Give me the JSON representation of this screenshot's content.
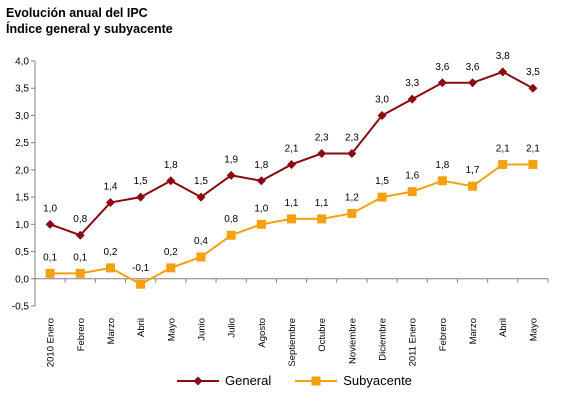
{
  "title": {
    "line1": "Evolución anual del IPC",
    "line2": "Índice general y subyacente"
  },
  "chart_data": {
    "type": "line",
    "categories": [
      "2010 Enero",
      "Febrero",
      "Marzo",
      "Abril",
      "Mayo",
      "Junio",
      "Julio",
      "Agosto",
      "Septiembre",
      "Octubre",
      "Noviembre",
      "Diciembre",
      "2011 Enero",
      "Febrero",
      "Marzo",
      "Abril",
      "Mayo"
    ],
    "series": [
      {
        "name": "General",
        "color": "#8B0A12",
        "marker": "diamond",
        "values": [
          1.0,
          0.8,
          1.4,
          1.5,
          1.8,
          1.5,
          1.9,
          1.8,
          2.1,
          2.3,
          2.3,
          3.0,
          3.3,
          3.6,
          3.6,
          3.8,
          3.5
        ],
        "labels": [
          "1,0",
          "0,8",
          "1,4",
          "1,5",
          "1,8",
          "1,5",
          "1,9",
          "1,8",
          "2,1",
          "2,3",
          "2,3",
          "3,0",
          "3,3",
          "3,6",
          "3,6",
          "3,8",
          "3,5"
        ]
      },
      {
        "name": "Subyacente",
        "color": "#F5A00F",
        "marker": "square",
        "values": [
          0.1,
          0.1,
          0.2,
          -0.1,
          0.2,
          0.4,
          0.8,
          1.0,
          1.1,
          1.1,
          1.2,
          1.5,
          1.6,
          1.8,
          1.7,
          2.1,
          2.1
        ],
        "labels": [
          "0,1",
          "0,1",
          "0,2",
          "-0,1",
          "0,2",
          "0,4",
          "0,8",
          "1,0",
          "1,1",
          "1,1",
          "1,2",
          "1,5",
          "1,6",
          "1,8",
          "1,7",
          "2,1",
          "2,1"
        ]
      }
    ],
    "ylim": [
      -0.5,
      4.0
    ],
    "yticks": [
      -0.5,
      0.0,
      0.5,
      1.0,
      1.5,
      2.0,
      2.5,
      3.0,
      3.5,
      4.0
    ],
    "ytick_labels": [
      "-0,5",
      "0,0",
      "0,5",
      "1,0",
      "1,5",
      "2,0",
      "2,5",
      "3,0",
      "3,5",
      "4,0"
    ],
    "grid": false,
    "legend_position": "bottom"
  }
}
